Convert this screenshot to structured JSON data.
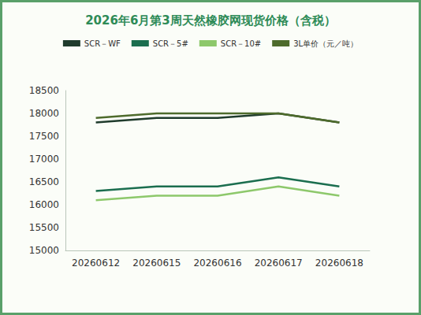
{
  "chart_data": {
    "type": "line",
    "title": "2026年6月第3周天然橡胶网现货价格（含税）",
    "categories": [
      "20260612",
      "20260615",
      "20260616",
      "20260617",
      "20260618"
    ],
    "series": [
      {
        "name": "SCR－WF",
        "color": "#1f3b2c",
        "values": [
          17800,
          17900,
          17900,
          18000,
          17800
        ]
      },
      {
        "name": "SCR－5#",
        "color": "#1b6e4f",
        "values": [
          16300,
          16400,
          16400,
          16600,
          16400
        ]
      },
      {
        "name": "SCR－10#",
        "color": "#8dc86b",
        "values": [
          16100,
          16200,
          16200,
          16400,
          16200
        ]
      },
      {
        "name": "3L单价（元／吨）",
        "color": "#4e6b2c",
        "values": [
          17900,
          18000,
          18000,
          18000,
          17800
        ]
      }
    ],
    "ylim": [
      15000,
      18500
    ],
    "yticks": [
      15000,
      15500,
      16000,
      16500,
      17000,
      17500,
      18000,
      18500
    ],
    "grid": false,
    "legend": "top",
    "marker": "none"
  }
}
